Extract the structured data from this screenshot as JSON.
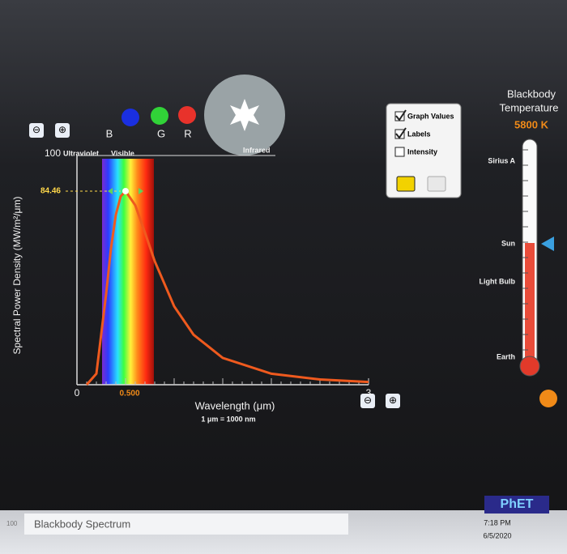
{
  "chart_data": {
    "type": "line",
    "ylabel": "Spectral Power Density (MW/m²/μm)",
    "xlabel": "Wavelength (μm)",
    "xlabel_note": "1 μm = 1000 nm",
    "bands": [
      "Ultraviolet",
      "Visible",
      "Infrared"
    ],
    "xlim": [
      0,
      3
    ],
    "ylim": [
      0,
      100
    ],
    "xticks": [
      0,
      {
        "value": 0.5,
        "label": "0.500"
      },
      3
    ],
    "yticks": [
      100
    ],
    "peak": {
      "x": 0.5,
      "y": 84.46
    },
    "series": [
      {
        "name": "5800 K",
        "color": "#ef5a1e",
        "x": [
          0.1,
          0.2,
          0.3,
          0.35,
          0.4,
          0.45,
          0.5,
          0.6,
          0.7,
          0.8,
          1.0,
          1.2,
          1.5,
          2.0,
          2.5,
          3.0
        ],
        "values": [
          0,
          4.8,
          39.5,
          59.5,
          74.1,
          82.2,
          84.46,
          78.3,
          66.3,
          53.9,
          34.2,
          21.8,
          11.7,
          4.8,
          2.3,
          1.2
        ]
      }
    ]
  },
  "ui": {
    "colors": [
      "B",
      "G",
      "R"
    ],
    "options": [
      {
        "label": "Graph Values",
        "checked": true
      },
      {
        "label": "Labels",
        "checked": true
      },
      {
        "label": "Intensity",
        "checked": false
      }
    ],
    "thermometer": {
      "title": [
        "Blackbody",
        "Temperature"
      ],
      "value": "5800 K",
      "labels": [
        "Sirius A",
        "Sun",
        "Light Bulb",
        "Earth"
      ]
    },
    "taskbar": {
      "zoom": "100",
      "app": "Blackbody Spectrum",
      "logo": "PhET",
      "time": "7:18 PM",
      "date": "6/5/2020"
    }
  }
}
